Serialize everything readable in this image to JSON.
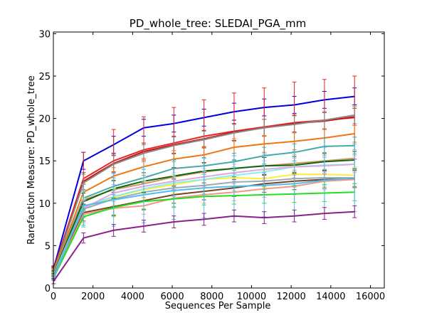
{
  "chart_data": {
    "type": "line",
    "title": "PD_whole_tree: SLEDAI_PGA_mm",
    "xlabel": "Sequences Per Sample",
    "ylabel": "Rarefaction Measure: PD_whole_tree",
    "xlim": [
      0,
      16700
    ],
    "ylim": [
      0,
      30.2
    ],
    "xticks": [
      0,
      2000,
      4000,
      6000,
      8000,
      10000,
      12000,
      14000,
      16000
    ],
    "yticks": [
      0,
      5,
      10,
      15,
      20,
      25,
      30
    ],
    "grid": false,
    "x": [
      10,
      1520,
      3040,
      4560,
      6080,
      7600,
      9120,
      10640,
      12160,
      13680,
      15200
    ],
    "series": [
      {
        "color": "#0000dd",
        "values": [
          2.3,
          15.0,
          16.9,
          18.9,
          19.4,
          20.1,
          20.8,
          21.3,
          21.6,
          22.2,
          22.6
        ],
        "error": [
          0.3,
          1.0,
          1.0,
          1.0,
          1.0,
          1.0,
          1.0,
          1.0,
          1.0,
          1.0,
          1.0
        ]
      },
      {
        "color": "#ee2222",
        "values": [
          2.2,
          12.9,
          15.0,
          16.3,
          17.1,
          17.9,
          18.5,
          19.0,
          19.5,
          19.8,
          20.1
        ],
        "error": [
          0.3,
          3.1,
          3.7,
          3.9,
          4.2,
          4.3,
          4.5,
          4.6,
          4.8,
          4.8,
          4.9
        ]
      },
      {
        "color": "#cc1111",
        "values": [
          2.1,
          12.6,
          14.7,
          16.1,
          16.9,
          17.6,
          18.4,
          18.9,
          19.4,
          19.7,
          20.2
        ],
        "error": [
          0.3,
          1.0,
          1.0,
          1.0,
          1.0,
          1.0,
          1.0,
          1.0,
          1.0,
          1.0,
          1.0
        ]
      },
      {
        "color": "#888888",
        "values": [
          2.0,
          12.4,
          14.6,
          15.9,
          16.8,
          17.5,
          18.3,
          18.9,
          19.3,
          19.8,
          20.4
        ],
        "error": [
          0.3,
          1.0,
          1.0,
          1.0,
          1.0,
          1.0,
          1.0,
          1.0,
          1.0,
          1.0,
          1.0
        ]
      },
      {
        "color": "#ee7711",
        "values": [
          1.9,
          11.3,
          13.2,
          14.3,
          15.2,
          15.7,
          16.6,
          17.0,
          17.3,
          17.7,
          18.2
        ],
        "error": [
          0.3,
          1.0,
          1.0,
          1.0,
          1.0,
          1.0,
          1.0,
          1.0,
          1.0,
          1.0,
          1.0
        ]
      },
      {
        "color": "#44aaaa",
        "values": [
          1.8,
          10.6,
          12.0,
          13.0,
          14.1,
          14.4,
          14.9,
          15.6,
          16.0,
          16.7,
          16.8
        ],
        "error": [
          0.3,
          1.0,
          1.0,
          1.0,
          1.0,
          1.0,
          1.0,
          1.0,
          1.0,
          1.0,
          1.0
        ]
      },
      {
        "color": "#cc9966",
        "values": [
          1.8,
          10.4,
          11.6,
          12.3,
          13.1,
          13.7,
          14.1,
          14.4,
          14.7,
          15.0,
          15.3
        ],
        "error": [
          0.3,
          1.0,
          1.0,
          1.0,
          1.0,
          1.0,
          1.0,
          1.0,
          1.0,
          1.0,
          1.0
        ]
      },
      {
        "color": "#116611",
        "values": [
          1.7,
          10.2,
          11.7,
          12.6,
          13.2,
          13.8,
          14.1,
          14.4,
          14.5,
          14.9,
          15.1
        ],
        "error": [
          0.3,
          1.0,
          1.0,
          1.0,
          1.0,
          1.0,
          1.0,
          1.0,
          1.0,
          1.0,
          1.0
        ]
      },
      {
        "color": "#ffee33",
        "values": [
          1.6,
          9.5,
          10.7,
          11.6,
          12.2,
          12.8,
          13.0,
          12.9,
          13.4,
          13.4,
          13.3
        ],
        "error": [
          0.3,
          1.0,
          1.0,
          1.0,
          1.0,
          1.0,
          1.0,
          1.0,
          1.0,
          1.0,
          1.0
        ]
      },
      {
        "color": "#88eeee",
        "values": [
          1.6,
          9.6,
          10.8,
          11.7,
          12.4,
          12.8,
          13.3,
          13.7,
          14.3,
          14.5,
          14.6
        ],
        "error": [
          0.3,
          1.0,
          1.0,
          1.0,
          1.0,
          1.0,
          1.0,
          1.0,
          1.0,
          1.0,
          1.0
        ]
      },
      {
        "color": "#ddaadd",
        "values": [
          1.5,
          9.4,
          11.2,
          12.0,
          12.6,
          13.1,
          13.6,
          14.0,
          14.3,
          14.4,
          14.6
        ],
        "error": [
          0.3,
          1.0,
          1.0,
          1.0,
          1.0,
          1.0,
          1.0,
          1.0,
          1.0,
          1.0,
          1.0
        ]
      },
      {
        "color": "#99aabb",
        "values": [
          1.5,
          9.3,
          10.5,
          11.3,
          11.8,
          12.1,
          12.5,
          12.6,
          12.9,
          13.0,
          13.0
        ],
        "error": [
          0.3,
          1.0,
          1.0,
          1.0,
          1.0,
          1.0,
          1.0,
          1.0,
          1.0,
          1.0,
          1.0
        ]
      },
      {
        "color": "#774422",
        "values": [
          1.4,
          8.9,
          9.6,
          10.3,
          11.0,
          11.4,
          11.8,
          12.3,
          12.6,
          12.8,
          12.9
        ],
        "error": [
          0.3,
          1.0,
          1.0,
          1.0,
          1.0,
          1.0,
          1.0,
          1.0,
          1.0,
          1.0,
          1.0
        ]
      },
      {
        "color": "#ee9988",
        "values": [
          1.3,
          8.7,
          9.4,
          9.7,
          10.6,
          11.0,
          11.3,
          11.7,
          12.0,
          12.6,
          12.8
        ],
        "error": [
          0.3,
          1.0,
          1.0,
          1.0,
          1.0,
          1.0,
          1.0,
          1.0,
          1.0,
          1.0,
          1.0
        ]
      },
      {
        "color": "#22dd22",
        "values": [
          1.2,
          8.4,
          9.5,
          10.2,
          10.5,
          10.8,
          10.9,
          11.0,
          11.1,
          11.2,
          11.3
        ],
        "error": [
          0.3,
          1.0,
          1.0,
          1.0,
          1.0,
          1.0,
          1.0,
          1.0,
          1.0,
          1.0,
          1.0
        ]
      },
      {
        "color": "#55bbee",
        "values": [
          1.2,
          9.7,
          10.4,
          11.0,
          11.5,
          11.8,
          12.0,
          12.1,
          12.3,
          12.7,
          13.0
        ],
        "error": [
          0.3,
          2.5,
          3.1,
          3.3,
          3.4,
          3.5,
          3.6,
          3.7,
          3.8,
          3.9,
          4.0
        ]
      },
      {
        "color": "#882288",
        "values": [
          0.8,
          5.9,
          6.8,
          7.3,
          7.8,
          8.1,
          8.5,
          8.3,
          8.5,
          8.8,
          9.0
        ],
        "error": [
          0.3,
          0.6,
          0.7,
          0.7,
          0.7,
          0.7,
          0.7,
          0.7,
          0.7,
          0.7,
          0.7
        ]
      }
    ]
  }
}
